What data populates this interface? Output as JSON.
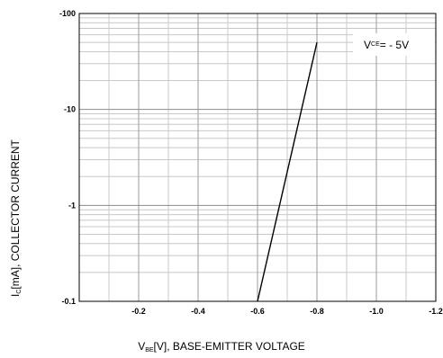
{
  "chart_data": {
    "type": "line",
    "title": "",
    "xlabel": {
      "symbol": "V",
      "sub": "BE",
      "rest": "[V], BASE-EMITTER VOLTAGE"
    },
    "ylabel": {
      "symbol": "I",
      "sub": "C",
      "rest": "[mA], COLLECTOR CURRENT"
    },
    "x_axis": {
      "range": [
        0,
        -1.2
      ],
      "reversed": true,
      "ticks": [
        -0.2,
        -0.4,
        -0.6,
        -0.8,
        -1.0,
        -1.2
      ],
      "tick_labels": [
        "-0.2",
        "-0.4",
        "-0.6",
        "-0.8",
        "-1.0",
        "-1.2"
      ]
    },
    "y_axis": {
      "scale": "log",
      "range": [
        -0.1,
        -100
      ],
      "ticks": [
        -0.1,
        -1,
        -10,
        -100
      ],
      "tick_labels": [
        "-0.1",
        "-1",
        "-10",
        "-100"
      ]
    },
    "grid": true,
    "legend": {
      "placement": "top-right",
      "symbol": "V",
      "sub": "CE",
      "rest": " = - 5V"
    },
    "series": [
      {
        "x": [
          -0.6,
          -0.8
        ],
        "y": [
          -0.1,
          -50
        ]
      }
    ]
  }
}
